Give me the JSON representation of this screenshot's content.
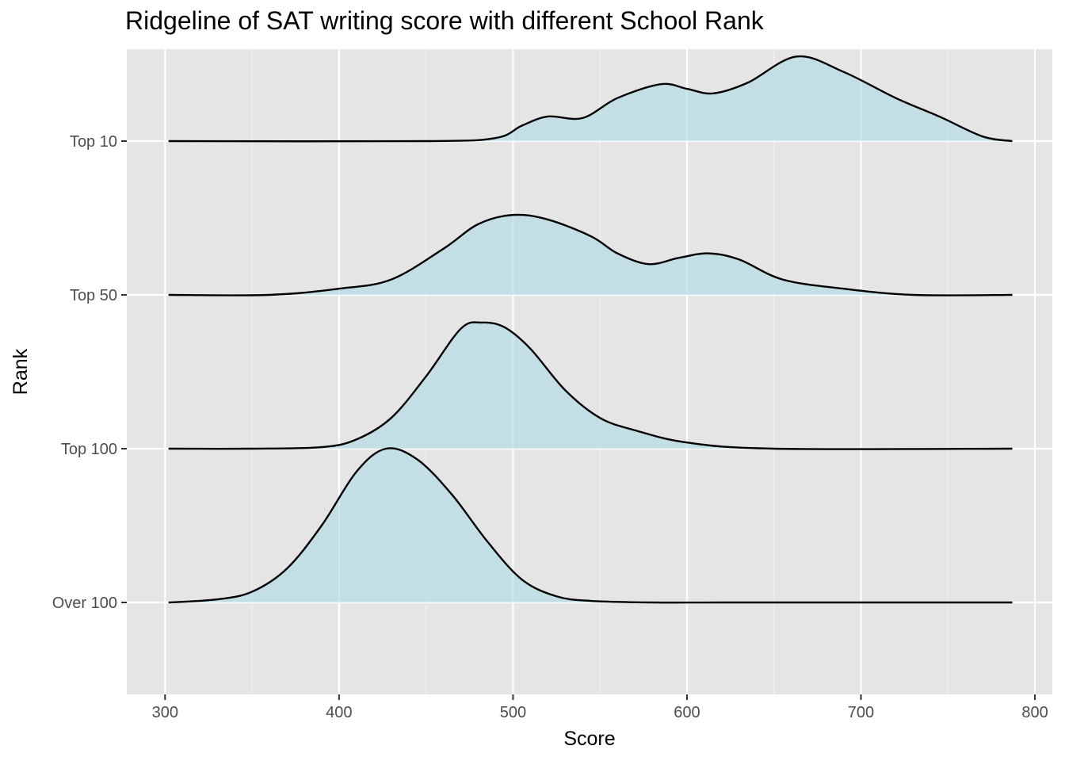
{
  "chart_data": {
    "type": "ridgeline",
    "title": "Ridgeline of SAT writing score with different School Rank",
    "xlabel": "Score",
    "ylabel": "Rank",
    "xlim": [
      278,
      810
    ],
    "x_ticks": [
      300,
      400,
      500,
      600,
      700,
      800
    ],
    "x_tick_labels": [
      "300",
      "400",
      "500",
      "600",
      "700",
      "800"
    ],
    "x_minor_ticks": [
      350,
      450,
      550,
      650,
      750
    ],
    "categories": [
      "Over 100",
      "Top 100",
      "Top 50",
      "Top 10"
    ],
    "grid": true,
    "legend": "none",
    "colors": {
      "panel_background": "#e5e5e5",
      "grid_major": "#ffffff",
      "fill": "#add8e6",
      "fill_opacity": 0.6,
      "line": "#000000",
      "tick_label": "#4d4d4d"
    },
    "series": [
      {
        "category": "Over 100",
        "x": [
          302,
          330,
          350,
          370,
          390,
          410,
          427,
          445,
          465,
          485,
          505,
          525,
          545,
          580,
          620,
          700,
          787
        ],
        "density": [
          0.0,
          0.02,
          0.07,
          0.22,
          0.5,
          0.85,
          1.0,
          0.93,
          0.7,
          0.4,
          0.15,
          0.04,
          0.01,
          0.0,
          0.0,
          0.0,
          0.0
        ]
      },
      {
        "category": "Top 100",
        "x": [
          302,
          350,
          390,
          410,
          430,
          450,
          470,
          482,
          495,
          510,
          530,
          550,
          570,
          600,
          650,
          787
        ],
        "density": [
          0.0,
          0.0,
          0.01,
          0.06,
          0.2,
          0.47,
          0.78,
          0.82,
          0.79,
          0.65,
          0.38,
          0.2,
          0.12,
          0.04,
          0.0,
          0.0
        ]
      },
      {
        "category": "Top 50",
        "x": [
          302,
          360,
          400,
          430,
          460,
          480,
          500,
          520,
          545,
          560,
          578,
          595,
          612,
          630,
          655,
          690,
          730,
          787
        ],
        "density": [
          0.0,
          0.0,
          0.04,
          0.1,
          0.3,
          0.46,
          0.52,
          0.49,
          0.38,
          0.27,
          0.2,
          0.24,
          0.27,
          0.23,
          0.1,
          0.04,
          0.0,
          0.0
        ]
      },
      {
        "category": "Top 10",
        "x": [
          302,
          450,
          490,
          505,
          520,
          540,
          560,
          585,
          600,
          615,
          635,
          663,
          690,
          720,
          745,
          770,
          787
        ],
        "density": [
          0.0,
          0.0,
          0.02,
          0.1,
          0.16,
          0.15,
          0.28,
          0.37,
          0.34,
          0.31,
          0.38,
          0.55,
          0.45,
          0.28,
          0.16,
          0.03,
          0.0
        ]
      }
    ]
  }
}
